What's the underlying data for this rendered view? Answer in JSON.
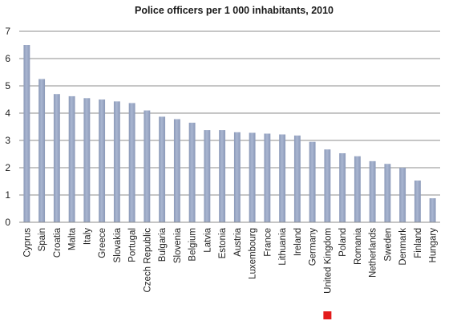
{
  "chart_data": {
    "type": "bar",
    "title": "Police officers per 1 000 inhabitants, 2010",
    "xlabel": "",
    "ylabel": "",
    "ylim": [
      0,
      7
    ],
    "yticks": [
      0,
      1,
      2,
      3,
      4,
      5,
      6,
      7
    ],
    "grid": true,
    "categories": [
      "Cyprus",
      "Spain",
      "Croatia",
      "Malta",
      "Italy",
      "Greece",
      "Slovakia",
      "Portugal",
      "Czech Republic",
      "Bulgaria",
      "Slovenia",
      "Belgium",
      "Latvia",
      "Estonia",
      "Austria",
      "Luxembourg",
      "France",
      "Lithuania",
      "Ireland",
      "Germany",
      "United Kingdom",
      "Poland",
      "Romania",
      "Netherlands",
      "Sweden",
      "Denmark",
      "Finland",
      "Hungary"
    ],
    "values": [
      6.5,
      5.25,
      4.7,
      4.62,
      4.55,
      4.5,
      4.43,
      4.37,
      4.1,
      3.87,
      3.78,
      3.65,
      3.38,
      3.38,
      3.3,
      3.28,
      3.25,
      3.22,
      3.18,
      2.95,
      2.67,
      2.53,
      2.42,
      2.24,
      2.14,
      2.0,
      1.53,
      0.88
    ],
    "bar_color": "#a9b6d1",
    "bar_color_dark": "#8b99b8",
    "highlight": {
      "category": "United Kingdom",
      "color": "#e31b1b"
    }
  }
}
